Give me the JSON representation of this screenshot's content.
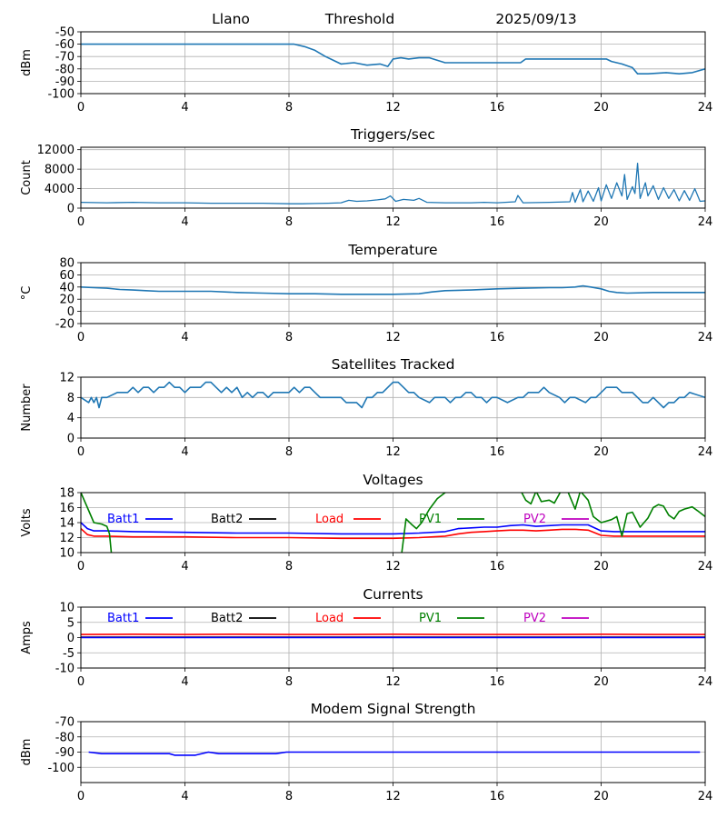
{
  "header": {
    "site": "Llano",
    "title": "Threshold",
    "date": "2025/09/13"
  },
  "chart_data": [
    {
      "id": "threshold",
      "type": "line",
      "title": "",
      "ylabel": "dBm",
      "ylim": [
        -100,
        -50
      ],
      "yticks": [
        -50,
        -60,
        -70,
        -80,
        -90,
        -100
      ],
      "xlim": [
        0,
        24
      ],
      "xticks": [
        0,
        4,
        8,
        12,
        16,
        20,
        24
      ],
      "grid": true,
      "series": [
        {
          "color": "#1f77b4",
          "x": [
            0,
            8.2,
            8.6,
            9.0,
            9.4,
            9.6,
            9.8,
            10.0,
            10.5,
            11.0,
            11.5,
            11.8,
            12.0,
            12.3,
            12.6,
            13.0,
            13.4,
            14.0,
            15.0,
            16.0,
            16.9,
            17.1,
            18.0,
            19.0,
            20.2,
            20.4,
            20.8,
            21.2,
            21.4,
            21.8,
            22.5,
            23.0,
            23.5,
            24.0
          ],
          "y": [
            -60,
            -60,
            -62,
            -65,
            -70,
            -72,
            -74,
            -76,
            -75,
            -77,
            -76,
            -78,
            -72,
            -71,
            -72,
            -71,
            -71,
            -75,
            -75,
            -75,
            -75,
            -72,
            -72,
            -72,
            -72,
            -74,
            -76,
            -79,
            -84,
            -84,
            -83,
            -84,
            -83,
            -80
          ]
        }
      ]
    },
    {
      "id": "triggers",
      "type": "line",
      "title": "Triggers/sec",
      "ylabel": "Count",
      "ylim": [
        0,
        12500
      ],
      "yticks": [
        0,
        4000,
        8000,
        12000
      ],
      "xlim": [
        0,
        24
      ],
      "xticks": [
        0,
        4,
        8,
        12,
        16,
        20,
        24
      ],
      "grid": true,
      "series": [
        {
          "color": "#1f77b4",
          "x": [
            0,
            1,
            2,
            3,
            4,
            5,
            6,
            7,
            8,
            8.5,
            9,
            9.5,
            10,
            10.3,
            10.6,
            11,
            11.4,
            11.7,
            11.9,
            12.1,
            12.4,
            12.8,
            13.0,
            13.3,
            14,
            15,
            15.5,
            16,
            16.7,
            16.8,
            17,
            18,
            18.8,
            18.9,
            19.0,
            19.2,
            19.3,
            19.5,
            19.7,
            19.9,
            20.0,
            20.2,
            20.4,
            20.6,
            20.8,
            20.9,
            21.0,
            21.2,
            21.3,
            21.4,
            21.5,
            21.7,
            21.8,
            22.0,
            22.2,
            22.4,
            22.6,
            22.8,
            23.0,
            23.2,
            23.4,
            23.6,
            23.8,
            24.0
          ],
          "y": [
            1200,
            1100,
            1200,
            1100,
            1100,
            1000,
            1000,
            1000,
            900,
            900,
            950,
            1000,
            1100,
            1600,
            1400,
            1500,
            1700,
            1900,
            2500,
            1400,
            1800,
            1600,
            2000,
            1200,
            1100,
            1100,
            1200,
            1100,
            1300,
            2600,
            1100,
            1200,
            1300,
            3200,
            1200,
            3800,
            1300,
            3500,
            1400,
            4200,
            1500,
            4800,
            2000,
            5200,
            2500,
            6900,
            1800,
            4400,
            3000,
            9200,
            2000,
            5200,
            2500,
            4600,
            1800,
            4200,
            2000,
            3800,
            1500,
            3600,
            1600,
            4000,
            1400,
            1500
          ]
        }
      ]
    },
    {
      "id": "temperature",
      "type": "line",
      "title": "Temperature",
      "ylabel": "°C",
      "ylim": [
        -20,
        80
      ],
      "yticks": [
        80,
        60,
        40,
        20,
        0,
        -20
      ],
      "xlim": [
        0,
        24
      ],
      "xticks": [
        0,
        4,
        8,
        12,
        16,
        20,
        24
      ],
      "grid": true,
      "series": [
        {
          "color": "#1f77b4",
          "x": [
            0,
            0.5,
            1,
            1.5,
            2,
            2.5,
            3,
            4,
            5,
            6,
            7,
            8,
            9,
            10,
            11,
            12,
            13,
            13.5,
            14,
            15,
            16,
            17,
            18,
            18.5,
            19,
            19.3,
            19.6,
            20,
            20.3,
            20.6,
            21,
            22,
            23,
            24
          ],
          "y": [
            40,
            39,
            38,
            36,
            35,
            34,
            33,
            33,
            33,
            31,
            30,
            29,
            29,
            28,
            28,
            28,
            29,
            32,
            34,
            35,
            37,
            38,
            39,
            39,
            40,
            42,
            40,
            37,
            33,
            31,
            30,
            31,
            31,
            31
          ]
        }
      ]
    },
    {
      "id": "satellites",
      "type": "line",
      "title": "Satellites Tracked",
      "ylabel": "Number",
      "ylim": [
        0,
        12
      ],
      "yticks": [
        0,
        4,
        8,
        12
      ],
      "xlim": [
        0,
        24
      ],
      "xticks": [
        0,
        4,
        8,
        12,
        16,
        20,
        24
      ],
      "grid": true,
      "series": [
        {
          "color": "#1f77b4",
          "x": [
            0,
            0.3,
            0.4,
            0.5,
            0.6,
            0.7,
            0.8,
            1.0,
            1.4,
            1.6,
            1.8,
            2.0,
            2.2,
            2.4,
            2.6,
            2.8,
            3.0,
            3.2,
            3.4,
            3.6,
            3.8,
            4.0,
            4.2,
            4.4,
            4.6,
            4.8,
            5.0,
            5.2,
            5.4,
            5.6,
            5.8,
            6.0,
            6.2,
            6.4,
            6.6,
            6.8,
            7.0,
            7.2,
            7.4,
            7.6,
            7.8,
            8.0,
            8.2,
            8.4,
            8.6,
            8.8,
            9.0,
            9.2,
            9.4,
            9.6,
            9.8,
            10.0,
            10.2,
            10.4,
            10.6,
            10.8,
            11.0,
            11.2,
            11.4,
            11.6,
            11.8,
            12.0,
            12.2,
            12.4,
            12.6,
            12.8,
            13.0,
            13.4,
            13.6,
            13.8,
            14.0,
            14.2,
            14.4,
            14.6,
            14.8,
            15.0,
            15.2,
            15.4,
            15.6,
            15.8,
            16.0,
            16.4,
            16.8,
            17.0,
            17.2,
            17.6,
            17.8,
            18.0,
            18.4,
            18.6,
            18.8,
            19.0,
            19.4,
            19.6,
            19.8,
            20.0,
            20.2,
            20.4,
            20.6,
            20.8,
            21.0,
            21.2,
            21.4,
            21.6,
            21.8,
            22.0,
            22.2,
            22.4,
            22.6,
            22.8,
            23.0,
            23.2,
            23.4,
            24.0
          ],
          "y": [
            8,
            7,
            8,
            7,
            8,
            6,
            8,
            8,
            9,
            9,
            9,
            10,
            9,
            10,
            10,
            9,
            10,
            10,
            11,
            10,
            10,
            9,
            10,
            10,
            10,
            11,
            11,
            10,
            9,
            10,
            9,
            10,
            8,
            9,
            8,
            9,
            9,
            8,
            9,
            9,
            9,
            9,
            10,
            9,
            10,
            10,
            9,
            8,
            8,
            8,
            8,
            8,
            7,
            7,
            7,
            6,
            8,
            8,
            9,
            9,
            10,
            11,
            11,
            10,
            9,
            9,
            8,
            7,
            8,
            8,
            8,
            7,
            8,
            8,
            9,
            9,
            8,
            8,
            7,
            8,
            8,
            7,
            8,
            8,
            9,
            9,
            10,
            9,
            8,
            7,
            8,
            8,
            7,
            8,
            8,
            9,
            10,
            10,
            10,
            9,
            9,
            9,
            8,
            7,
            7,
            8,
            7,
            6,
            7,
            7,
            8,
            8,
            9,
            8
          ]
        }
      ]
    },
    {
      "id": "voltages",
      "type": "line",
      "title": "Voltages",
      "ylabel": "Volts",
      "ylim": [
        10,
        18
      ],
      "yticks": [
        10,
        12,
        14,
        16,
        18
      ],
      "xlim": [
        0,
        24
      ],
      "xticks": [
        0,
        4,
        8,
        12,
        16,
        20,
        24
      ],
      "grid": true,
      "legend": [
        "Batt1",
        "Batt2",
        "Load",
        "PV1",
        "PV2"
      ],
      "series": [
        {
          "name": "Batt1",
          "color": "#0000ff",
          "x": [
            0,
            0.25,
            0.5,
            1,
            2,
            4,
            6,
            8,
            10,
            12,
            13,
            14,
            14.5,
            15,
            15.5,
            16,
            16.5,
            17,
            17.5,
            18,
            18.5,
            19,
            19.5,
            20,
            20.5,
            21,
            22,
            23,
            24
          ],
          "y": [
            14,
            13.2,
            12.9,
            12.9,
            12.8,
            12.7,
            12.6,
            12.6,
            12.5,
            12.5,
            12.6,
            12.8,
            13.2,
            13.3,
            13.4,
            13.4,
            13.6,
            13.7,
            13.5,
            13.6,
            13.7,
            13.7,
            13.7,
            12.9,
            12.8,
            12.8,
            12.8,
            12.8,
            12.8
          ]
        },
        {
          "name": "Load",
          "color": "#ff0000",
          "x": [
            0,
            0.25,
            0.5,
            1,
            2,
            4,
            6,
            8,
            10,
            12,
            13,
            14,
            14.5,
            15,
            15.5,
            16,
            16.5,
            17,
            17.5,
            18,
            18.5,
            19,
            19.5,
            20,
            20.5,
            21,
            22,
            23,
            24
          ],
          "y": [
            13.2,
            12.4,
            12.2,
            12.2,
            12.1,
            12.1,
            12.0,
            12.0,
            11.9,
            11.9,
            12.0,
            12.2,
            12.5,
            12.7,
            12.8,
            12.9,
            13.0,
            13.0,
            12.9,
            13.0,
            13.1,
            13.1,
            13.0,
            12.3,
            12.2,
            12.2,
            12.2,
            12.2,
            12.2
          ]
        },
        {
          "name": "PV1",
          "color": "#008000",
          "x": [
            0,
            0.25,
            0.5,
            0.8,
            1.0,
            1.1,
            1.2,
            12.3,
            12.5,
            12.7,
            12.9,
            13.1,
            13.4,
            13.7,
            14.0,
            14.2,
            16.9,
            17.1,
            17.3,
            17.5,
            17.7,
            18.0,
            18.2,
            18.5,
            18.7,
            19.0,
            19.2,
            19.5,
            19.7,
            20.0,
            20.2,
            20.4,
            20.6,
            20.8,
            21.0,
            21.2,
            21.5,
            21.8,
            22.0,
            22.2,
            22.4,
            22.6,
            22.8,
            23.0,
            23.2,
            23.5,
            23.7,
            24.0
          ],
          "y": [
            18.0,
            16.0,
            14.0,
            13.8,
            13.5,
            12.5,
            9.0,
            9.0,
            14.5,
            13.8,
            13.2,
            14.0,
            15.8,
            17.2,
            18.0,
            18.3,
            18.3,
            17.0,
            16.5,
            18.2,
            16.8,
            17.0,
            16.6,
            18.5,
            18.3,
            15.8,
            18.2,
            17.0,
            14.8,
            14.0,
            14.2,
            14.4,
            14.8,
            12.2,
            15.2,
            15.4,
            13.4,
            14.6,
            16.0,
            16.4,
            16.2,
            15.0,
            14.5,
            15.5,
            15.8,
            16.1,
            15.6,
            14.8
          ]
        }
      ]
    },
    {
      "id": "currents",
      "type": "line",
      "title": "Currents",
      "ylabel": "Amps",
      "ylim": [
        -10,
        10
      ],
      "yticks": [
        -10,
        -5,
        0,
        5,
        10
      ],
      "xlim": [
        0,
        24
      ],
      "xticks": [
        0,
        4,
        8,
        12,
        16,
        20,
        24
      ],
      "grid": true,
      "legend": [
        "Batt1",
        "Batt2",
        "Load",
        "PV1",
        "PV2"
      ],
      "series": [
        {
          "name": "Load",
          "color": "#ff0000",
          "x": [
            0,
            2,
            4,
            6,
            8,
            10,
            12,
            14,
            16,
            18,
            20,
            22,
            24
          ],
          "y": [
            1.0,
            1.1,
            1.0,
            1.1,
            1.0,
            1.0,
            1.1,
            1.0,
            1.0,
            1.0,
            1.1,
            1.0,
            1.0
          ]
        },
        {
          "name": "PV2",
          "color": "#bf00bf",
          "x": [
            0,
            24
          ],
          "y": [
            0.2,
            0.2
          ]
        },
        {
          "name": "PV1",
          "color": "#008000",
          "x": [
            0,
            24
          ],
          "y": [
            0.1,
            0.1
          ]
        },
        {
          "name": "Batt1",
          "color": "#0000ff",
          "x": [
            0,
            24
          ],
          "y": [
            0.0,
            0.0
          ]
        }
      ]
    },
    {
      "id": "modem",
      "type": "line",
      "title": "Modem Signal Strength",
      "ylabel": "dBm",
      "ylim": [
        -110,
        -70
      ],
      "yticks": [
        -70,
        -80,
        -90,
        -100
      ],
      "xlim": [
        0,
        24
      ],
      "xticks": [
        0,
        4,
        8,
        12,
        16,
        20,
        24
      ],
      "grid": true,
      "series": [
        {
          "color": "#0000ff",
          "x": [
            0.3,
            0.8,
            1.5,
            2.5,
            3.4,
            3.6,
            4.2,
            4.4,
            4.9,
            5.3,
            6.0,
            7.0,
            7.5,
            7.9,
            8.3,
            10,
            12,
            14,
            16,
            18,
            20,
            22,
            23.8
          ],
          "y": [
            -90,
            -91,
            -91,
            -91,
            -91,
            -92,
            -92,
            -92,
            -90,
            -91,
            -91,
            -91,
            -91,
            -90,
            -90,
            -90,
            -90,
            -90,
            -90,
            -90,
            -90,
            -90,
            -90
          ]
        }
      ]
    }
  ]
}
